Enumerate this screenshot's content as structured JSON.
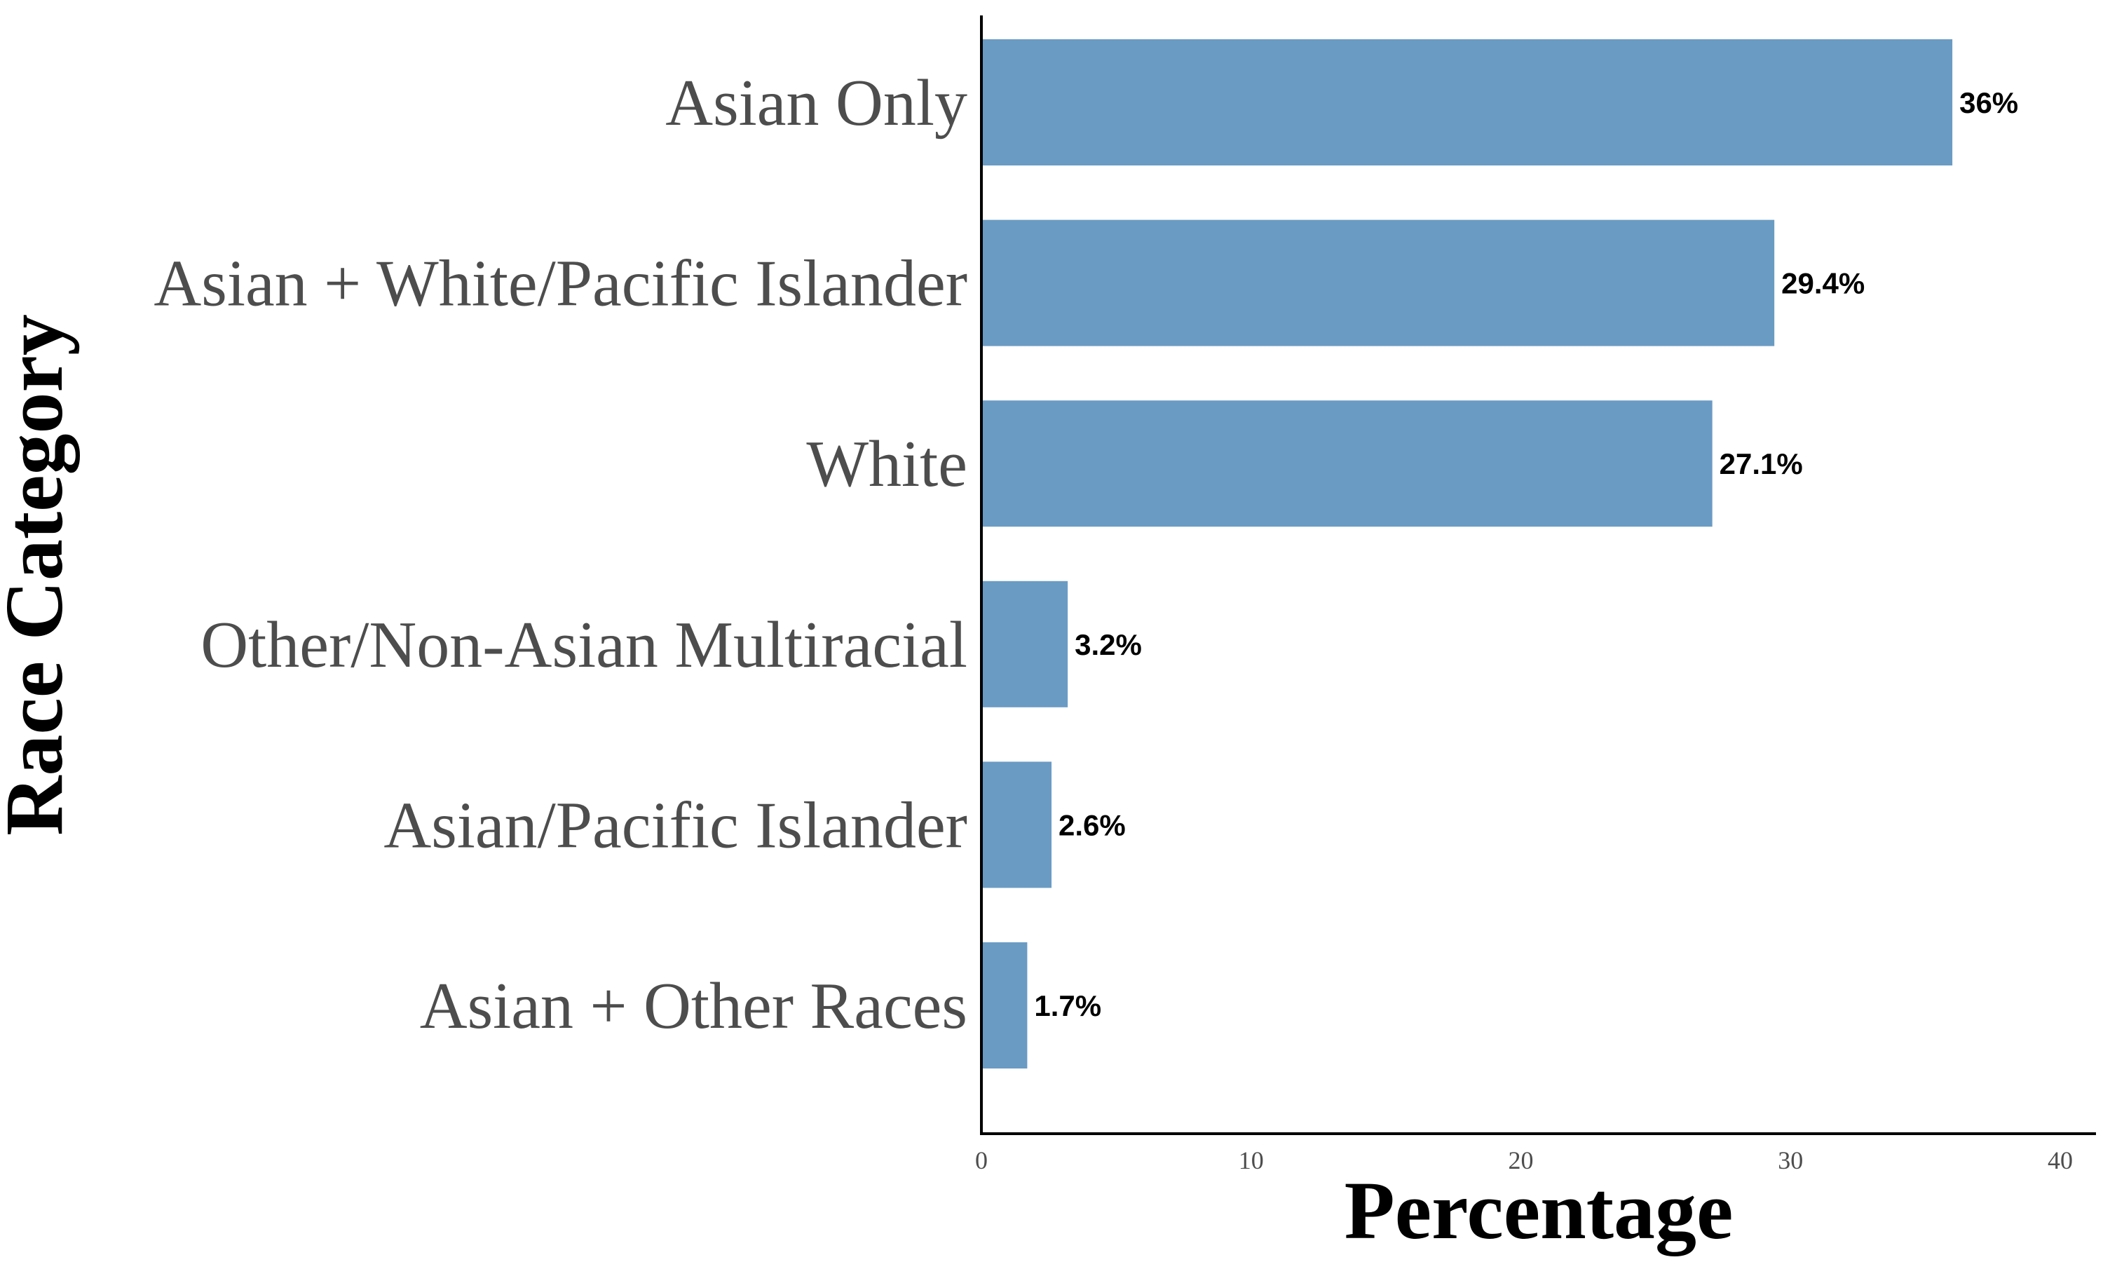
{
  "chart_data": {
    "type": "bar",
    "orientation": "horizontal",
    "categories": [
      "Asian Only",
      "Asian + White/Pacific Islander",
      "White",
      "Other/Non-Asian Multiracial",
      "Asian/Pacific Islander",
      "Asian + Other Races"
    ],
    "values": [
      36,
      29.4,
      27.1,
      3.2,
      2.6,
      1.7
    ],
    "data_labels": [
      "36%",
      "29.4%",
      "27.1%",
      "3.2%",
      "2.6%",
      "1.7%"
    ],
    "xlabel": "Percentage",
    "ylabel": "Race Category",
    "xlim": [
      0,
      40
    ],
    "xticks": [
      "0",
      "10",
      "20",
      "30",
      "40"
    ],
    "grid": false,
    "bar_color": "#6a9bc3"
  }
}
